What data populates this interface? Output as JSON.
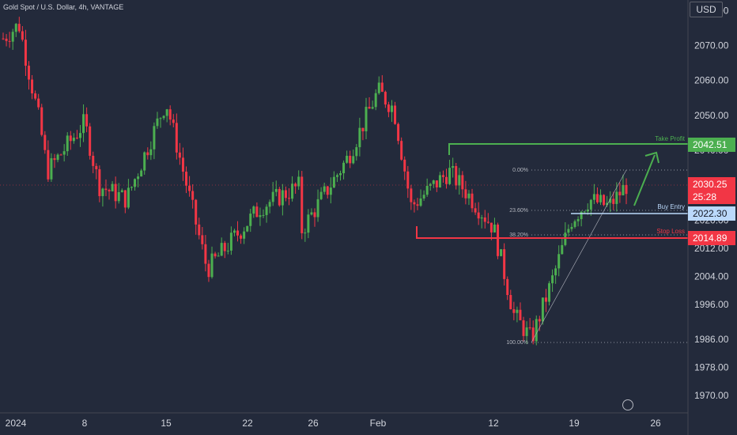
{
  "header": {
    "title": "Gold Spot / U.S. Dollar, 4h, VANTAGE",
    "currency": "USD"
  },
  "price_axis": {
    "ticks": [
      "2080.00",
      "2070.00",
      "2060.00",
      "2050.00",
      "2040.00",
      "2020.00",
      "2012.00",
      "2004.00",
      "1996.00",
      "1986.00",
      "1978.00",
      "1970.00"
    ]
  },
  "time_axis": {
    "labels": [
      "2024",
      "8",
      "15",
      "22",
      "26",
      "Feb",
      "12",
      "19",
      "26"
    ]
  },
  "levels": {
    "take_profit": {
      "label": "Take Profit",
      "price": "2042.51",
      "color": "#4caf50"
    },
    "buy_entry": {
      "label": "Buy Entry",
      "price": "2022.30",
      "color": "#bbd9fb"
    },
    "stop_loss": {
      "label": "Stop Loss",
      "price": "2014.89",
      "color": "#f23645"
    },
    "current": {
      "price": "2030.25",
      "countdown": "25:28",
      "color": "#f23645"
    }
  },
  "fib": {
    "labels": [
      "0.00%",
      "23.60%",
      "38.20%",
      "100.00%"
    ]
  },
  "colors": {
    "up": "#4caf50",
    "down": "#f23645",
    "background": "#232a3b",
    "axis_text": "#d1d4dc"
  },
  "chart_data": {
    "type": "candlestick",
    "instrument": "Gold Spot / U.S. Dollar",
    "interval": "4h",
    "trend_points": [
      {
        "x": "2024",
        "y": 2072
      },
      {
        "x": "4",
        "y": 2076
      },
      {
        "x": "5",
        "y": 2048
      },
      {
        "x": "6",
        "y": 2034
      },
      {
        "x": "8",
        "y": 2048
      },
      {
        "x": "9",
        "y": 2030
      },
      {
        "x": "12",
        "y": 2026
      },
      {
        "x": "15",
        "y": 2054
      },
      {
        "x": "17",
        "y": 2006
      },
      {
        "x": "19",
        "y": 2024
      },
      {
        "x": "22",
        "y": 2030
      },
      {
        "x": "25",
        "y": 2016
      },
      {
        "x": "29",
        "y": 2038
      },
      {
        "x": "Feb",
        "y": 2057
      },
      {
        "x": "2",
        "y": 2052
      },
      {
        "x": "5",
        "y": 2024
      },
      {
        "x": "7",
        "y": 2034
      },
      {
        "x": "9",
        "y": 2028
      },
      {
        "x": "12",
        "y": 2018
      },
      {
        "x": "13",
        "y": 1993
      },
      {
        "x": "14",
        "y": 1986
      },
      {
        "x": "16",
        "y": 2004
      },
      {
        "x": "19",
        "y": 2020
      },
      {
        "x": "20",
        "y": 2026
      },
      {
        "x": "22",
        "y": 2024
      },
      {
        "x": "23",
        "y": 2030
      }
    ],
    "ylim": [
      1965,
      2083
    ],
    "grid": false
  }
}
